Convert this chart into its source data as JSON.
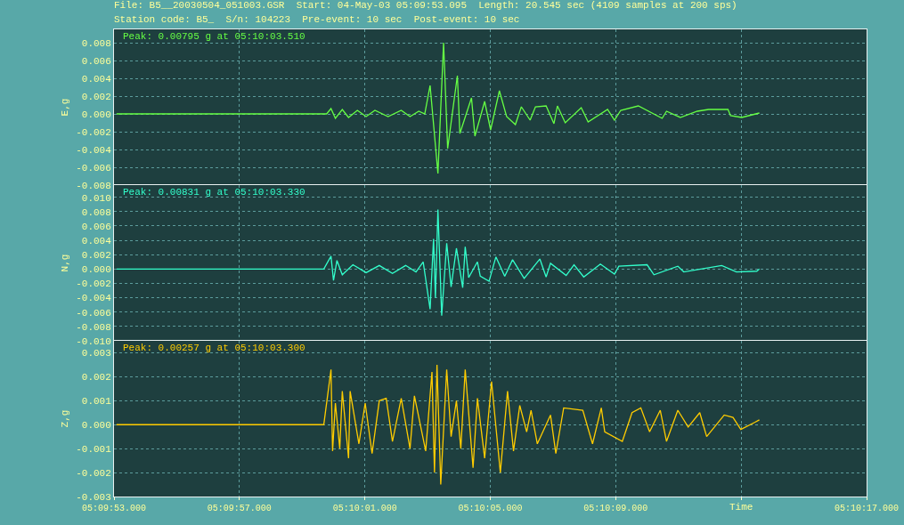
{
  "chart_data": [
    {
      "type": "line",
      "title": "File: B5__20030504_051003.GSR  Start: 04-May-03 05:09:53.095  Length: 20.545 sec (4109 samples at 200 sps)",
      "subtitle": "Station code: B5_  S/n: 104223  Pre-event: 10 sec  Post-event: 10 sec",
      "ylabel": "E,g",
      "annotations": [
        "Peak: 0.00795 g at 05:10:03.510"
      ],
      "x": [
        "2003-05-04T05:09:53.08",
        "2003-05-04T05:09:59.78",
        "2003-05-04T05:09:59.92",
        "2003-05-04T05:10:00.06",
        "2003-05-04T05:10:00.28",
        "2003-05-04T05:10:00.48",
        "2003-05-04T05:10:00.76",
        "2003-05-04T05:10:01.04",
        "2003-05-04T05:10:01.32",
        "2003-05-04T05:10:01.74",
        "2003-05-04T05:10:02.16",
        "2003-05-04T05:10:02.44",
        "2003-05-04T05:10:02.72",
        "2003-05-04T05:10:02.91",
        "2003-05-04T05:10:03.08",
        "2003-05-04T05:10:03.33",
        "2003-05-04T05:10:03.51",
        "2003-05-04T05:10:03.64",
        "2003-05-04T05:10:03.95",
        "2003-05-04T05:10:04.03",
        "2003-05-04T05:10:04.40",
        "2003-05-04T05:10:04.51",
        "2003-05-04T05:10:04.82",
        "2003-05-04T05:10:05.01",
        "2003-05-04T05:10:05.29",
        "2003-05-04T05:10:05.52",
        "2003-05-04T05:10:05.80",
        "2003-05-04T05:10:05.99",
        "2003-05-04T05:10:06.27",
        "2003-05-04T05:10:06.44",
        "2003-05-04T05:10:06.78",
        "2003-05-04T05:10:07.03",
        "2003-05-04T05:10:07.14",
        "2003-05-04T05:10:07.39",
        "2003-05-04T05:10:07.90",
        "2003-05-04T05:10:08.12",
        "2003-05-04T05:10:08.74",
        "2003-05-04T05:10:08.96",
        "2003-05-04T05:10:09.16",
        "2003-05-04T05:10:09.72",
        "2003-05-04T05:10:10.48",
        "2003-05-04T05:10:10.62",
        "2003-05-04T05:10:11.06",
        "2003-05-04T05:10:11.60",
        "2003-05-04T05:10:11.96",
        "2003-05-04T05:10:12.58",
        "2003-05-04T05:10:12.66",
        "2003-05-04T05:10:13.02",
        "2003-05-04T05:10:13.58"
      ],
      "series": [
        {
          "color": "#66ff44",
          "values": [
            0,
            0,
            0.0006,
            -0.0005,
            0.0005,
            -0.0004,
            0.0004,
            -0.0003,
            0.0004,
            -0.0003,
            0.0004,
            -0.0003,
            0.0003,
            0,
            0.0032,
            -0.0067,
            0.008,
            -0.0039,
            0.0043,
            -0.0022,
            0.0018,
            -0.0025,
            0.0014,
            -0.0018,
            0.0026,
            -0.0003,
            -0.0012,
            0.0008,
            -0.0007,
            0.0008,
            0.0009,
            -0.0011,
            0.0009,
            -0.001,
            0.0007,
            -0.0009,
            0.0005,
            -0.0007,
            0.0004,
            0.0009,
            -0.0005,
            0.0003,
            -0.0004,
            0.0003,
            0.0005,
            0.0005,
            -0.0002,
            -0.0004,
            0.0001
          ]
        }
      ],
      "xlim": [
        "2003-05-04T05:09:53",
        "2003-05-04T05:10:17"
      ],
      "xticks": [
        {
          "value": "2003-05-04T05:09:53",
          "label": null
        },
        {
          "value": "2003-05-04T05:09:57",
          "label": null
        },
        {
          "value": "2003-05-04T05:10:01",
          "label": null
        },
        {
          "value": "2003-05-04T05:10:05",
          "label": null
        },
        {
          "value": "2003-05-04T05:10:09",
          "label": null
        },
        {
          "value": "2003-05-04T05:10:13",
          "label": null
        },
        {
          "value": "2003-05-04T05:10:17",
          "label": null
        }
      ],
      "ylim": [
        -0.008,
        0.0095
      ],
      "yticks": [
        {
          "value": -0.008,
          "label": "-0.008"
        },
        {
          "value": -0.006,
          "label": "-0.006"
        },
        {
          "value": -0.004,
          "label": "-0.004"
        },
        {
          "value": -0.002,
          "label": "-0.002"
        },
        {
          "value": 0,
          "label": "0.000"
        },
        {
          "value": 0.002,
          "label": "0.002"
        },
        {
          "value": 0.004,
          "label": "0.004"
        },
        {
          "value": 0.006,
          "label": "0.006"
        },
        {
          "value": 0.008,
          "label": "0.008"
        }
      ],
      "tick_labels": "y",
      "grid": true,
      "marker": "none",
      "line_style": "solid"
    },
    {
      "type": "line",
      "ylabel": "N,g",
      "annotations": [
        "Peak: 0.00831 g at 05:10:03.330"
      ],
      "x": [
        "2003-05-04T05:09:53.08",
        "2003-05-04T05:09:59.69",
        "2003-05-04T05:09:59.92",
        "2003-05-04T05:10:00.00",
        "2003-05-04T05:10:00.11",
        "2003-05-04T05:10:00.28",
        "2003-05-04T05:10:00.62",
        "2003-05-04T05:10:01.04",
        "2003-05-04T05:10:01.46",
        "2003-05-04T05:10:01.88",
        "2003-05-04T05:10:02.30",
        "2003-05-04T05:10:02.63",
        "2003-05-04T05:10:02.86",
        "2003-05-04T05:10:03.08",
        "2003-05-04T05:10:03.19",
        "2003-05-04T05:10:03.25",
        "2003-05-04T05:10:03.33",
        "2003-05-04T05:10:03.45",
        "2003-05-04T05:10:03.61",
        "2003-05-04T05:10:03.75",
        "2003-05-04T05:10:03.92",
        "2003-05-04T05:10:04.12",
        "2003-05-04T05:10:04.20",
        "2003-05-04T05:10:04.31",
        "2003-05-04T05:10:04.59",
        "2003-05-04T05:10:04.68",
        "2003-05-04T05:10:04.96",
        "2003-05-04T05:10:05.18",
        "2003-05-04T05:10:05.46",
        "2003-05-04T05:10:05.71",
        "2003-05-04T05:10:06.08",
        "2003-05-04T05:10:06.58",
        "2003-05-04T05:10:06.78",
        "2003-05-04T05:10:06.92",
        "2003-05-04T05:10:07.42",
        "2003-05-04T05:10:07.67",
        "2003-05-04T05:10:07.98",
        "2003-05-04T05:10:08.51",
        "2003-05-04T05:10:08.96",
        "2003-05-04T05:10:09.10",
        "2003-05-04T05:10:10.00",
        "2003-05-04T05:10:10.22",
        "2003-05-04T05:10:10.98",
        "2003-05-04T05:10:11.17",
        "2003-05-04T05:10:12.38",
        "2003-05-04T05:10:12.85",
        "2003-05-04T05:10:13.50",
        "2003-05-04T05:10:13.58"
      ],
      "series": [
        {
          "color": "#33ffcc",
          "values": [
            0,
            0,
            0.0018,
            -0.0016,
            0.0012,
            -0.0008,
            0.0006,
            -0.0005,
            0.0005,
            -0.0006,
            0.0005,
            -0.0004,
            0.001,
            -0.0056,
            0.0042,
            -0.004,
            0.0083,
            -0.0065,
            0.0036,
            -0.0025,
            0.0029,
            -0.0026,
            0.0031,
            -0.0012,
            0.001,
            -0.001,
            -0.0017,
            0.0017,
            -0.001,
            0.0013,
            -0.0013,
            0.0014,
            -0.0011,
            0.0008,
            -0.0009,
            0.0006,
            -0.0011,
            0.0007,
            -0.0007,
            0.0004,
            0.0006,
            -0.0008,
            0.0004,
            -0.0004,
            0.0005,
            -0.0004,
            -0.0003,
            0
          ]
        }
      ],
      "xlim": [
        "2003-05-04T05:09:53",
        "2003-05-04T05:10:17"
      ],
      "xticks": [
        {
          "value": "2003-05-04T05:09:53",
          "label": null
        },
        {
          "value": "2003-05-04T05:09:57",
          "label": null
        },
        {
          "value": "2003-05-04T05:10:01",
          "label": null
        },
        {
          "value": "2003-05-04T05:10:05",
          "label": null
        },
        {
          "value": "2003-05-04T05:10:09",
          "label": null
        },
        {
          "value": "2003-05-04T05:10:13",
          "label": null
        },
        {
          "value": "2003-05-04T05:10:17",
          "label": null
        }
      ],
      "ylim": [
        -0.01,
        0.0117
      ],
      "yticks": [
        {
          "value": -0.01,
          "label": "-0.010"
        },
        {
          "value": -0.008,
          "label": "-0.008"
        },
        {
          "value": -0.006,
          "label": "-0.006"
        },
        {
          "value": -0.004,
          "label": "-0.004"
        },
        {
          "value": -0.002,
          "label": "-0.002"
        },
        {
          "value": 0,
          "label": "0.000"
        },
        {
          "value": 0.002,
          "label": "0.002"
        },
        {
          "value": 0.004,
          "label": "0.004"
        },
        {
          "value": 0.006,
          "label": "0.006"
        },
        {
          "value": 0.008,
          "label": "0.008"
        },
        {
          "value": 0.01,
          "label": "0.010"
        }
      ],
      "tick_labels": "y",
      "grid": true,
      "marker": "none",
      "line_style": "solid"
    },
    {
      "type": "line",
      "ylabel": "Z,g",
      "xlabel": "Time",
      "annotations": [
        "Peak: 0.00257 g at 05:10:03.300"
      ],
      "x": [
        "2003-05-04T05:09:53.08",
        "2003-05-04T05:09:59.69",
        "2003-05-04T05:09:59.92",
        "2003-05-04T05:09:59.97",
        "2003-05-04T05:10:00.06",
        "2003-05-04T05:10:00.20",
        "2003-05-04T05:10:00.28",
        "2003-05-04T05:10:00.48",
        "2003-05-04T05:10:00.53",
        "2003-05-04T05:10:00.81",
        "2003-05-04T05:10:01.01",
        "2003-05-04T05:10:01.23",
        "2003-05-04T05:10:01.46",
        "2003-05-04T05:10:01.68",
        "2003-05-04T05:10:01.88",
        "2003-05-04T05:10:02.16",
        "2003-05-04T05:10:02.44",
        "2003-05-04T05:10:02.58",
        "2003-05-04T05:10:02.94",
        "2003-05-04T05:10:03.14",
        "2003-05-04T05:10:03.22",
        "2003-05-04T05:10:03.30",
        "2003-05-04T05:10:03.42",
        "2003-05-04T05:10:03.61",
        "2003-05-04T05:10:03.75",
        "2003-05-04T05:10:03.92",
        "2003-05-04T05:10:04.06",
        "2003-05-04T05:10:04.20",
        "2003-05-04T05:10:04.45",
        "2003-05-04T05:10:04.59",
        "2003-05-04T05:10:04.82",
        "2003-05-04T05:10:05.04",
        "2003-05-04T05:10:05.32",
        "2003-05-04T05:10:05.55",
        "2003-05-04T05:10:05.74",
        "2003-05-04T05:10:05.94",
        "2003-05-04T05:10:06.16",
        "2003-05-04T05:10:06.30",
        "2003-05-04T05:10:06.50",
        "2003-05-04T05:10:06.92",
        "2003-05-04T05:10:07.09",
        "2003-05-04T05:10:07.34",
        "2003-05-04T05:10:07.95",
        "2003-05-04T05:10:08.26",
        "2003-05-04T05:10:08.54",
        "2003-05-04T05:10:08.65",
        "2003-05-04T05:10:09.21",
        "2003-05-04T05:10:09.52",
        "2003-05-04T05:10:09.80",
        "2003-05-04T05:10:10.08",
        "2003-05-04T05:10:10.42",
        "2003-05-04T05:10:10.62",
        "2003-05-04T05:10:10.98",
        "2003-05-04T05:10:11.31",
        "2003-05-04T05:10:11.68",
        "2003-05-04T05:10:11.90",
        "2003-05-04T05:10:12.46",
        "2003-05-04T05:10:12.74",
        "2003-05-04T05:10:12.99",
        "2003-05-04T05:10:13.44",
        "2003-05-04T05:10:13.58"
      ],
      "series": [
        {
          "color": "#ffcc00",
          "values": [
            0,
            0,
            0.0023,
            -0.0011,
            0.0009,
            -0.001,
            0.0014,
            -0.0014,
            0.0014,
            -0.0008,
            0.0009,
            -0.0012,
            0.001,
            0.0011,
            -0.0007,
            0.0011,
            -0.001,
            0.0012,
            -0.0011,
            0.0022,
            -0.002,
            0.0025,
            -0.0025,
            0.0023,
            -0.0005,
            0.001,
            -0.001,
            0.0023,
            -0.0018,
            0.0011,
            -0.0014,
            0.0018,
            -0.002,
            0.0014,
            -0.0011,
            0.0008,
            -0.0003,
            0.0006,
            -0.0008,
            0.0004,
            -0.0012,
            0.0007,
            0.0006,
            -0.0008,
            0.0007,
            -0.0003,
            -0.0007,
            0.0005,
            0.0007,
            -0.0003,
            0.0006,
            -0.0007,
            0.0006,
            -0.0001,
            0.0005,
            -0.0005,
            0.0004,
            0.0003,
            -0.0002,
            0.0001,
            0.0002
          ]
        }
      ],
      "xlim": [
        "2003-05-04T05:09:53",
        "2003-05-04T05:10:17"
      ],
      "xticks": [
        {
          "value": "2003-05-04T05:09:53",
          "label": "05:09:53.000"
        },
        {
          "value": "2003-05-04T05:09:57",
          "label": "05:09:57.000"
        },
        {
          "value": "2003-05-04T05:10:01",
          "label": "05:10:01.000"
        },
        {
          "value": "2003-05-04T05:10:05",
          "label": "05:10:05.000"
        },
        {
          "value": "2003-05-04T05:10:09",
          "label": "05:10:09.000"
        },
        {
          "value": "2003-05-04T05:10:13",
          "label": null
        },
        {
          "value": "2003-05-04T05:10:17",
          "label": "05:10:17.000"
        }
      ],
      "ylim": [
        -0.003,
        0.0035
      ],
      "yticks": [
        {
          "value": -0.003,
          "label": "-0.003"
        },
        {
          "value": -0.002,
          "label": "-0.002"
        },
        {
          "value": -0.001,
          "label": "-0.001"
        },
        {
          "value": 0,
          "label": "0.000"
        },
        {
          "value": 0.001,
          "label": "0.001"
        },
        {
          "value": 0.002,
          "label": "0.002"
        },
        {
          "value": 0.003,
          "label": "0.003"
        }
      ],
      "grid": true,
      "marker": "none",
      "line_style": "solid"
    }
  ]
}
